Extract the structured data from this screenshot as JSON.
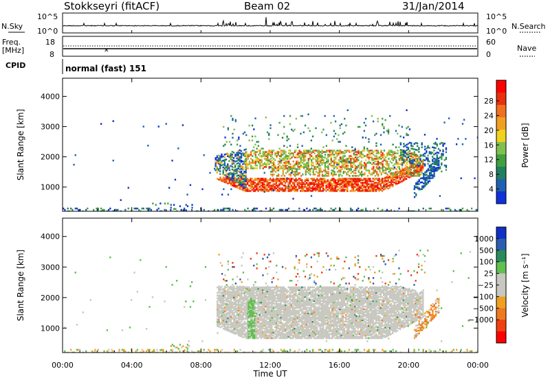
{
  "header": {
    "station": "Stokkseyri (fitACF)",
    "beam": "Beam 02",
    "date": "31/Jan/2014"
  },
  "colors": {
    "axis": "#000000",
    "background": "#ffffff",
    "power_scale": [
      "#1030d8",
      "#2060b0",
      "#207f60",
      "#40a040",
      "#80c050",
      "#f0d020",
      "#f0a020",
      "#f07020",
      "#e83010",
      "#ff0000"
    ],
    "velocity_scale": [
      "#1030c8",
      "#2c5cb0",
      "#2a8a5a",
      "#60c050",
      "#c8c8c0",
      "#c8c8c0",
      "#f0a020",
      "#f07820",
      "#f04010",
      "#ff0000"
    ]
  },
  "chart_data": [
    {
      "type": "line",
      "panel": "N.Sky / N.Search",
      "left_label": "N.Sky",
      "right_label": "N.Search",
      "left_ticks": [
        "10^5",
        "10^0"
      ],
      "right_ticks": [
        "10^5",
        "10^0"
      ],
      "note": "noise levels vs time"
    },
    {
      "type": "line",
      "panel": "Freq / Nave",
      "left_label_lines": [
        "Freq.",
        "[MHz]"
      ],
      "right_label": "Nave",
      "left_ticks": [
        "18",
        "8"
      ],
      "right_ticks": [
        "60",
        "0"
      ]
    },
    {
      "type": "text",
      "panel": "CPID",
      "label": "CPID",
      "value": "normal (fast) 151"
    },
    {
      "type": "heatmap",
      "panel": "Power",
      "ylabel": "Slant Range [km]",
      "yticks": [
        1000,
        2000,
        3000,
        4000
      ],
      "ylim": [
        200,
        4600
      ],
      "colorbar_label": "Power [dB]",
      "colorbar_ticks": [
        "4",
        "8",
        "12",
        "16",
        "20",
        "24",
        "28"
      ]
    },
    {
      "type": "heatmap",
      "panel": "Velocity",
      "ylabel": "Slant Range [km]",
      "yticks": [
        1000,
        2000,
        3000,
        4000
      ],
      "ylim": [
        200,
        4600
      ],
      "colorbar_label": "Velocity [m s⁻¹]",
      "colorbar_ticks": [
        "1000",
        "500",
        "100",
        "25",
        "−25",
        "−100",
        "−500",
        "−1000"
      ]
    }
  ],
  "x_axis": {
    "label": "Time UT",
    "ticks": [
      "00:00",
      "04:00",
      "08:00",
      "12:00",
      "16:00",
      "20:00",
      "00:00"
    ]
  }
}
